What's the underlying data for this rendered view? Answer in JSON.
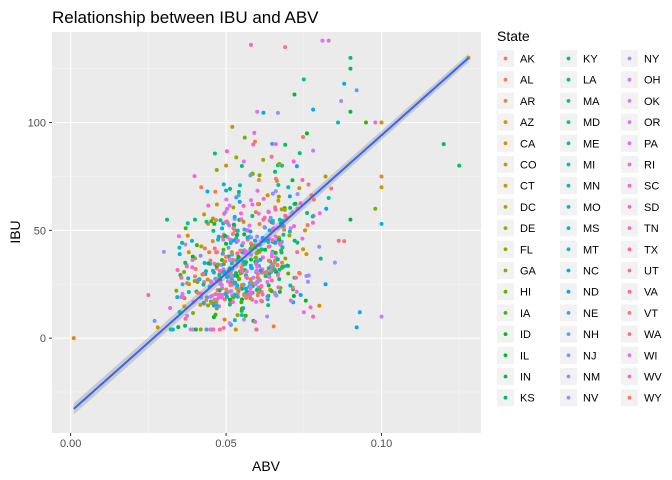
{
  "chart_data": {
    "type": "scatter",
    "title": "Relationship between IBU and ABV",
    "xlabel": "ABV",
    "ylabel": "IBU",
    "xlim": [
      -0.006,
      0.132
    ],
    "ylim": [
      -44,
      142
    ],
    "xticks": [
      0.0,
      0.05,
      0.1
    ],
    "xtick_labels": [
      "0.00",
      "0.05",
      "0.10"
    ],
    "yticks": [
      0,
      50,
      100
    ],
    "ytick_labels": [
      "0",
      "50",
      "100"
    ],
    "grid": true,
    "background": "#ebebeb",
    "trend_line": {
      "method": "linear",
      "color": "#3366ff",
      "band_color": "#999999",
      "x_range": [
        0.001,
        0.128
      ],
      "intercept": -34.1,
      "slope": 1282
    },
    "legend": {
      "title": "State",
      "placement": "right",
      "columns": 3,
      "states": [
        "AK",
        "AL",
        "AR",
        "AZ",
        "CA",
        "CO",
        "CT",
        "DC",
        "DE",
        "FL",
        "GA",
        "HI",
        "IA",
        "ID",
        "IL",
        "IN",
        "KS",
        "KY",
        "LA",
        "MA",
        "MD",
        "ME",
        "MI",
        "MN",
        "MO",
        "MS",
        "MT",
        "NC",
        "ND",
        "NE",
        "NH",
        "NJ",
        "NM",
        "NV",
        "NY",
        "OH",
        "OK",
        "OR",
        "PA",
        "RI",
        "SC",
        "SD",
        "TN",
        "TX",
        "UT",
        "VA",
        "VT",
        "WA",
        "WI",
        "WV",
        "WY"
      ],
      "colors": [
        "#f8766d",
        "#f27d52",
        "#ea8331",
        "#e08a00",
        "#d59100",
        "#c99800",
        "#bb9d00",
        "#ac9f00",
        "#9ca700",
        "#8aab00",
        "#76b000",
        "#5eb300",
        "#39b600",
        "#00b81f",
        "#00ba38",
        "#00bc4f",
        "#00bd5f",
        "#00c06b",
        "#00c17a",
        "#00c08b",
        "#00c19a",
        "#00c1a7",
        "#00bfb4",
        "#00bcc1",
        "#00b9cc",
        "#00b4d7",
        "#00b0f6",
        "#00a9ff",
        "#06a4ff",
        "#35a2ff",
        "#619cff",
        "#7c96ff",
        "#9590ff",
        "#a58aff",
        "#b983ff",
        "#c77cff",
        "#d575fe",
        "#e16ff4",
        "#ea6aea",
        "#f365df",
        "#f962dd",
        "#fd61d1",
        "#ff63c3",
        "#ff64b0",
        "#ff67a4",
        "#ff6c91",
        "#fc717f",
        "#f8766d",
        "#e76bf3",
        "#ff61cc",
        "#f8766d"
      ]
    },
    "points": [
      [
        0.001,
        0,
        3
      ],
      [
        0.12,
        90,
        16
      ],
      [
        0.125,
        80,
        17
      ],
      [
        0.128,
        130,
        4
      ],
      [
        0.081,
        138,
        36
      ],
      [
        0.083,
        138,
        38
      ],
      [
        0.069,
        135,
        46
      ],
      [
        0.058,
        136,
        43
      ],
      [
        0.075,
        120,
        20
      ],
      [
        0.09,
        125,
        16
      ],
      [
        0.09,
        130,
        18
      ],
      [
        0.092,
        115,
        30
      ],
      [
        0.088,
        118,
        25
      ],
      [
        0.093,
        12,
        26
      ],
      [
        0.092,
        5,
        28
      ],
      [
        0.1,
        10,
        34
      ],
      [
        0.1,
        53,
        26
      ],
      [
        0.098,
        60,
        10
      ],
      [
        0.1,
        70,
        5
      ],
      [
        0.1,
        75,
        2
      ],
      [
        0.095,
        100,
        12
      ],
      [
        0.1,
        100,
        4
      ],
      [
        0.098,
        100,
        39
      ],
      [
        0.086,
        100,
        22
      ],
      [
        0.09,
        105,
        14
      ],
      [
        0.087,
        110,
        33
      ],
      [
        0.06,
        105,
        35
      ],
      [
        0.072,
        113,
        14
      ],
      [
        0.078,
        106,
        27
      ],
      [
        0.04,
        37,
        5
      ],
      [
        0.043,
        16,
        45
      ],
      [
        0.034,
        22,
        9
      ],
      [
        0.032,
        14,
        40
      ],
      [
        0.036,
        25,
        29
      ],
      [
        0.04,
        55,
        17
      ],
      [
        0.035,
        42,
        22
      ],
      [
        0.027,
        8,
        30
      ],
      [
        0.028,
        5,
        6
      ],
      [
        0.025,
        20,
        43
      ],
      [
        0.03,
        40,
        33
      ],
      [
        0.031,
        55,
        18
      ],
      [
        0.037,
        51,
        12
      ],
      [
        0.042,
        70,
        1
      ],
      [
        0.044,
        68,
        26
      ],
      [
        0.047,
        78,
        8
      ],
      [
        0.05,
        80,
        4
      ],
      [
        0.052,
        98,
        6
      ],
      [
        0.056,
        93,
        10
      ],
      [
        0.058,
        64,
        36
      ],
      [
        0.062,
        55,
        41
      ],
      [
        0.064,
        50,
        24
      ],
      [
        0.066,
        45,
        31
      ],
      [
        0.065,
        40,
        16
      ],
      [
        0.068,
        35,
        2
      ],
      [
        0.07,
        30,
        11
      ],
      [
        0.072,
        28,
        19
      ],
      [
        0.074,
        20,
        27
      ],
      [
        0.075,
        12,
        38
      ],
      [
        0.078,
        10,
        44
      ],
      [
        0.08,
        15,
        3
      ],
      [
        0.082,
        25,
        28
      ],
      [
        0.085,
        35,
        32
      ],
      [
        0.088,
        45,
        0
      ],
      [
        0.09,
        55,
        14
      ],
      [
        0.083,
        65,
        21
      ],
      [
        0.082,
        75,
        7
      ],
      [
        0.078,
        87,
        35
      ],
      [
        0.076,
        95,
        13
      ],
      [
        0.073,
        60,
        47
      ],
      [
        0.07,
        70,
        23
      ],
      [
        0.068,
        80,
        20
      ],
      [
        0.066,
        90,
        40
      ]
    ]
  }
}
